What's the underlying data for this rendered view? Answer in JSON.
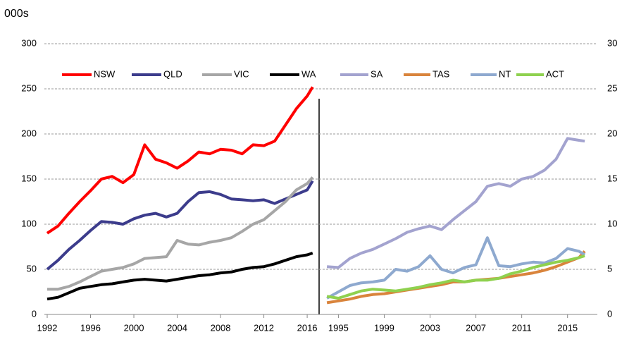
{
  "chart_data": [
    {
      "type": "line",
      "ylabel": "000s",
      "x": [
        1992,
        1993,
        1994,
        1995,
        1996,
        1997,
        1998,
        1999,
        2000,
        2001,
        2002,
        2003,
        2004,
        2005,
        2006,
        2007,
        2008,
        2009,
        2010,
        2011,
        2012,
        2013,
        2014,
        2015,
        2016,
        2016.5
      ],
      "xlim": [
        1992,
        2017.1
      ],
      "xticks": [
        1992,
        1996,
        2000,
        2004,
        2008,
        2012,
        2016
      ],
      "ylim": [
        0,
        300
      ],
      "yticks": [
        0,
        50,
        100,
        150,
        200,
        250,
        300
      ],
      "grid": true,
      "series": [
        {
          "name": "NSW",
          "color": "#ff0000",
          "values": [
            90,
            98,
            112,
            125,
            137,
            150,
            153,
            146,
            155,
            188,
            172,
            168,
            162,
            170,
            180,
            178,
            183,
            182,
            178,
            188,
            187,
            192,
            210,
            228,
            242,
            252
          ]
        },
        {
          "name": "QLD",
          "color": "#3c3c8c",
          "values": [
            50,
            60,
            72,
            82,
            93,
            103,
            102,
            100,
            106,
            110,
            112,
            108,
            112,
            125,
            135,
            136,
            133,
            128,
            127,
            126,
            127,
            123,
            128,
            133,
            138,
            148
          ]
        },
        {
          "name": "VIC",
          "color": "#a6a6a6",
          "values": [
            28,
            28,
            31,
            36,
            42,
            48,
            50,
            52,
            56,
            62,
            63,
            64,
            82,
            78,
            77,
            80,
            82,
            85,
            92,
            100,
            105,
            115,
            125,
            138,
            145,
            152
          ]
        },
        {
          "name": "WA",
          "color": "#000000",
          "values": [
            17,
            19,
            24,
            29,
            31,
            33,
            34,
            36,
            38,
            39,
            38,
            37,
            39,
            41,
            43,
            44,
            46,
            47,
            50,
            52,
            53,
            56,
            60,
            64,
            66,
            68
          ]
        }
      ]
    },
    {
      "type": "line",
      "x": [
        1994,
        1995,
        1996,
        1997,
        1998,
        1999,
        2000,
        2001,
        2002,
        2003,
        2004,
        2005,
        2006,
        2007,
        2008,
        2009,
        2010,
        2011,
        2012,
        2013,
        2014,
        2015,
        2016,
        2016.5
      ],
      "xlim": [
        1993.5,
        2017.6
      ],
      "xticks": [
        1995,
        1999,
        2003,
        2007,
        2011,
        2015
      ],
      "ylim": [
        0,
        30
      ],
      "yticks": [
        0,
        5,
        10,
        15,
        20,
        25,
        30
      ],
      "grid": true,
      "series": [
        {
          "name": "SA",
          "color": "#a3a3cf",
          "values": [
            5.3,
            5.2,
            6.2,
            6.8,
            7.2,
            7.8,
            8.4,
            9.1,
            9.5,
            9.8,
            9.4,
            10.5,
            11.5,
            12.5,
            14.2,
            14.5,
            14.2,
            15.0,
            15.3,
            16.0,
            17.2,
            19.5,
            19.3,
            19.2
          ]
        },
        {
          "name": "TAS",
          "color": "#d9843c",
          "values": [
            1.3,
            1.5,
            1.7,
            2.0,
            2.2,
            2.3,
            2.5,
            2.7,
            2.9,
            3.1,
            3.3,
            3.6,
            3.6,
            3.8,
            3.9,
            4.0,
            4.2,
            4.4,
            4.6,
            4.9,
            5.3,
            5.8,
            6.3,
            7.0
          ]
        },
        {
          "name": "NT",
          "color": "#8ea9cf",
          "values": [
            1.8,
            2.5,
            3.2,
            3.5,
            3.6,
            3.8,
            5.0,
            4.8,
            5.3,
            6.5,
            5.0,
            4.6,
            5.2,
            5.5,
            8.5,
            5.4,
            5.3,
            5.6,
            5.8,
            5.7,
            6.2,
            7.3,
            7.0,
            6.6
          ]
        },
        {
          "name": "ACT",
          "color": "#8fd14f",
          "values": [
            2.0,
            1.8,
            2.2,
            2.6,
            2.8,
            2.7,
            2.6,
            2.8,
            3.0,
            3.3,
            3.5,
            3.8,
            3.6,
            3.8,
            3.8,
            4.0,
            4.5,
            4.8,
            5.2,
            5.5,
            5.8,
            6.0,
            6.3,
            6.5
          ]
        }
      ]
    }
  ]
}
